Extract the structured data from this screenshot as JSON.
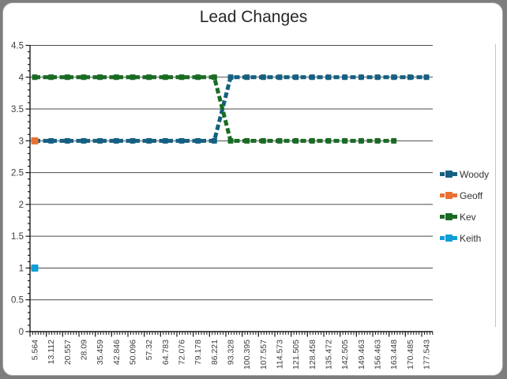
{
  "chart_data": {
    "type": "line",
    "title": "Lead Changes",
    "xlabel": "",
    "ylabel": "",
    "ylim": [
      0,
      4.5
    ],
    "grid": true,
    "legend_position": "right",
    "y_ticks": [
      "0",
      "0.5",
      "1",
      "1.5",
      "2",
      "2.5",
      "3",
      "3.5",
      "4",
      "4.5"
    ],
    "categories": [
      "5.564",
      "13.112",
      "20.557",
      "28.09",
      "35.459",
      "42.846",
      "50.096",
      "57.32",
      "64.783",
      "72.076",
      "79.178",
      "86.221",
      "93.328",
      "100.395",
      "107.557",
      "114.573",
      "121.505",
      "128.458",
      "135.472",
      "142.505",
      "149.463",
      "156.463",
      "163.448",
      "170.485",
      "177.543"
    ],
    "series": [
      {
        "name": "Woody",
        "color": "#156082",
        "values": [
          3,
          3,
          3,
          3,
          3,
          3,
          3,
          3,
          3,
          3,
          3,
          3,
          4,
          4,
          4,
          4,
          4,
          4,
          4,
          4,
          4,
          4,
          4,
          4,
          4
        ]
      },
      {
        "name": "Geoff",
        "color": "#E97132",
        "values": [
          3,
          null,
          null,
          null,
          null,
          null,
          null,
          null,
          null,
          null,
          null,
          null,
          null,
          null,
          null,
          null,
          null,
          null,
          null,
          null,
          null,
          null,
          null,
          null,
          null
        ]
      },
      {
        "name": "Kev",
        "color": "#196B24",
        "values": [
          4,
          4,
          4,
          4,
          4,
          4,
          4,
          4,
          4,
          4,
          4,
          4,
          3,
          3,
          3,
          3,
          3,
          3,
          3,
          3,
          3,
          3,
          3,
          null,
          null
        ]
      },
      {
        "name": "Keith",
        "color": "#0F9ED5",
        "values": [
          1,
          null,
          null,
          null,
          null,
          null,
          null,
          null,
          null,
          null,
          null,
          null,
          null,
          null,
          null,
          null,
          null,
          null,
          null,
          null,
          null,
          null,
          null,
          null,
          null
        ]
      }
    ],
    "style": {
      "gridline_color": "#4d4d4d",
      "axis_color": "#1a1a1a",
      "tick_label_color": "#3f3f3f",
      "title_color": "#262626",
      "card_background": "#ffffff",
      "page_background": "#7d7d7d"
    }
  }
}
